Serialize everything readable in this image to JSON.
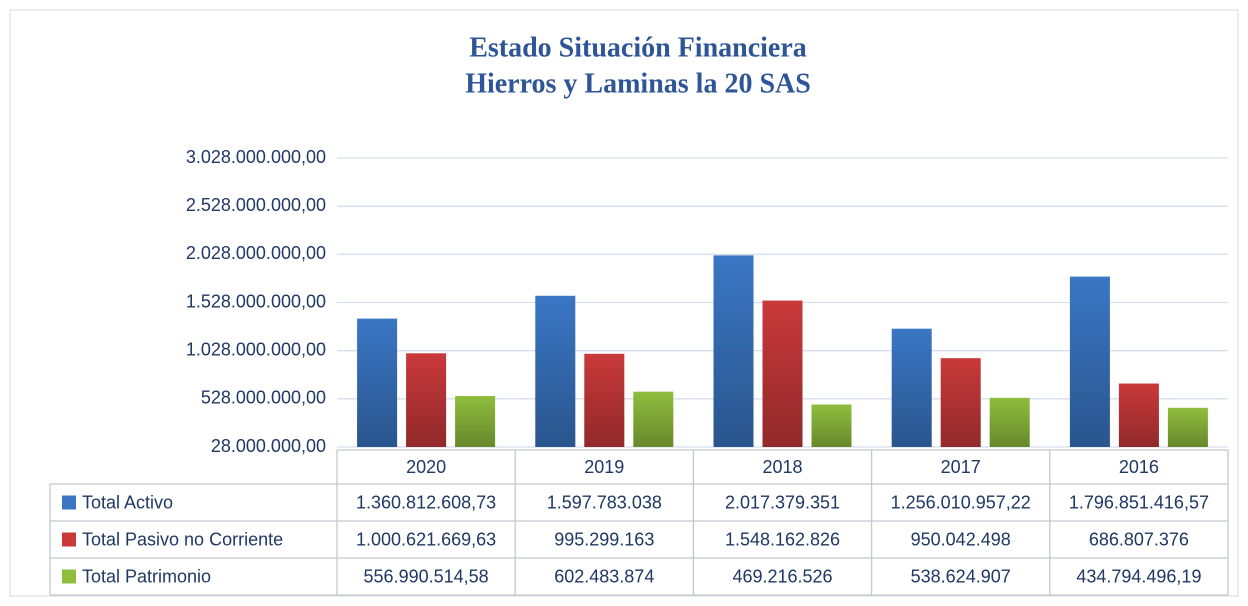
{
  "chart_data": {
    "type": "bar",
    "title": "Estado Situación Financiera",
    "subtitle": "Hierros y Laminas la 20 SAS",
    "categories": [
      "2020",
      "2019",
      "2018",
      "2017",
      "2016"
    ],
    "series": [
      {
        "name": "Total Activo",
        "color": "#3a76c4",
        "values": [
          1360812608.73,
          1597783038,
          2017379351,
          1256010957.22,
          1796851416.57
        ],
        "value_labels": [
          "1.360.812.608,73",
          "1.597.783.038",
          "2.017.379.351",
          "1.256.010.957,22",
          "1.796.851.416,57"
        ]
      },
      {
        "name": "Total Pasivo no Corriente",
        "color": "#c9393a",
        "values": [
          1000621669.63,
          995299163,
          1548162826,
          950042498,
          686807376
        ],
        "value_labels": [
          "1.000.621.669,63",
          "995.299.163",
          "1.548.162.826",
          "950.042.498",
          "686.807.376"
        ]
      },
      {
        "name": "Total Patrimonio",
        "color": "#8fbd3d",
        "values": [
          556990514.58,
          602483874,
          469216526,
          538624907,
          434794496.19
        ],
        "value_labels": [
          "556.990.514,58",
          "602.483.874",
          "469.216.526",
          "538.624.907",
          "434.794.496,19"
        ]
      }
    ],
    "ylim": [
      28000000,
      3028000000
    ],
    "yticks": [
      {
        "value": 28000000,
        "label": "28.000.000,00"
      },
      {
        "value": 528000000,
        "label": "528.000.000,00"
      },
      {
        "value": 1028000000,
        "label": "1.028.000.000,00"
      },
      {
        "value": 1528000000,
        "label": "1.528.000.000,00"
      },
      {
        "value": 2028000000,
        "label": "2.028.000.000,00"
      },
      {
        "value": 2528000000,
        "label": "2.528.000.000,00"
      },
      {
        "value": 3028000000,
        "label": "3.028.000.000,00"
      }
    ],
    "grid": true
  }
}
